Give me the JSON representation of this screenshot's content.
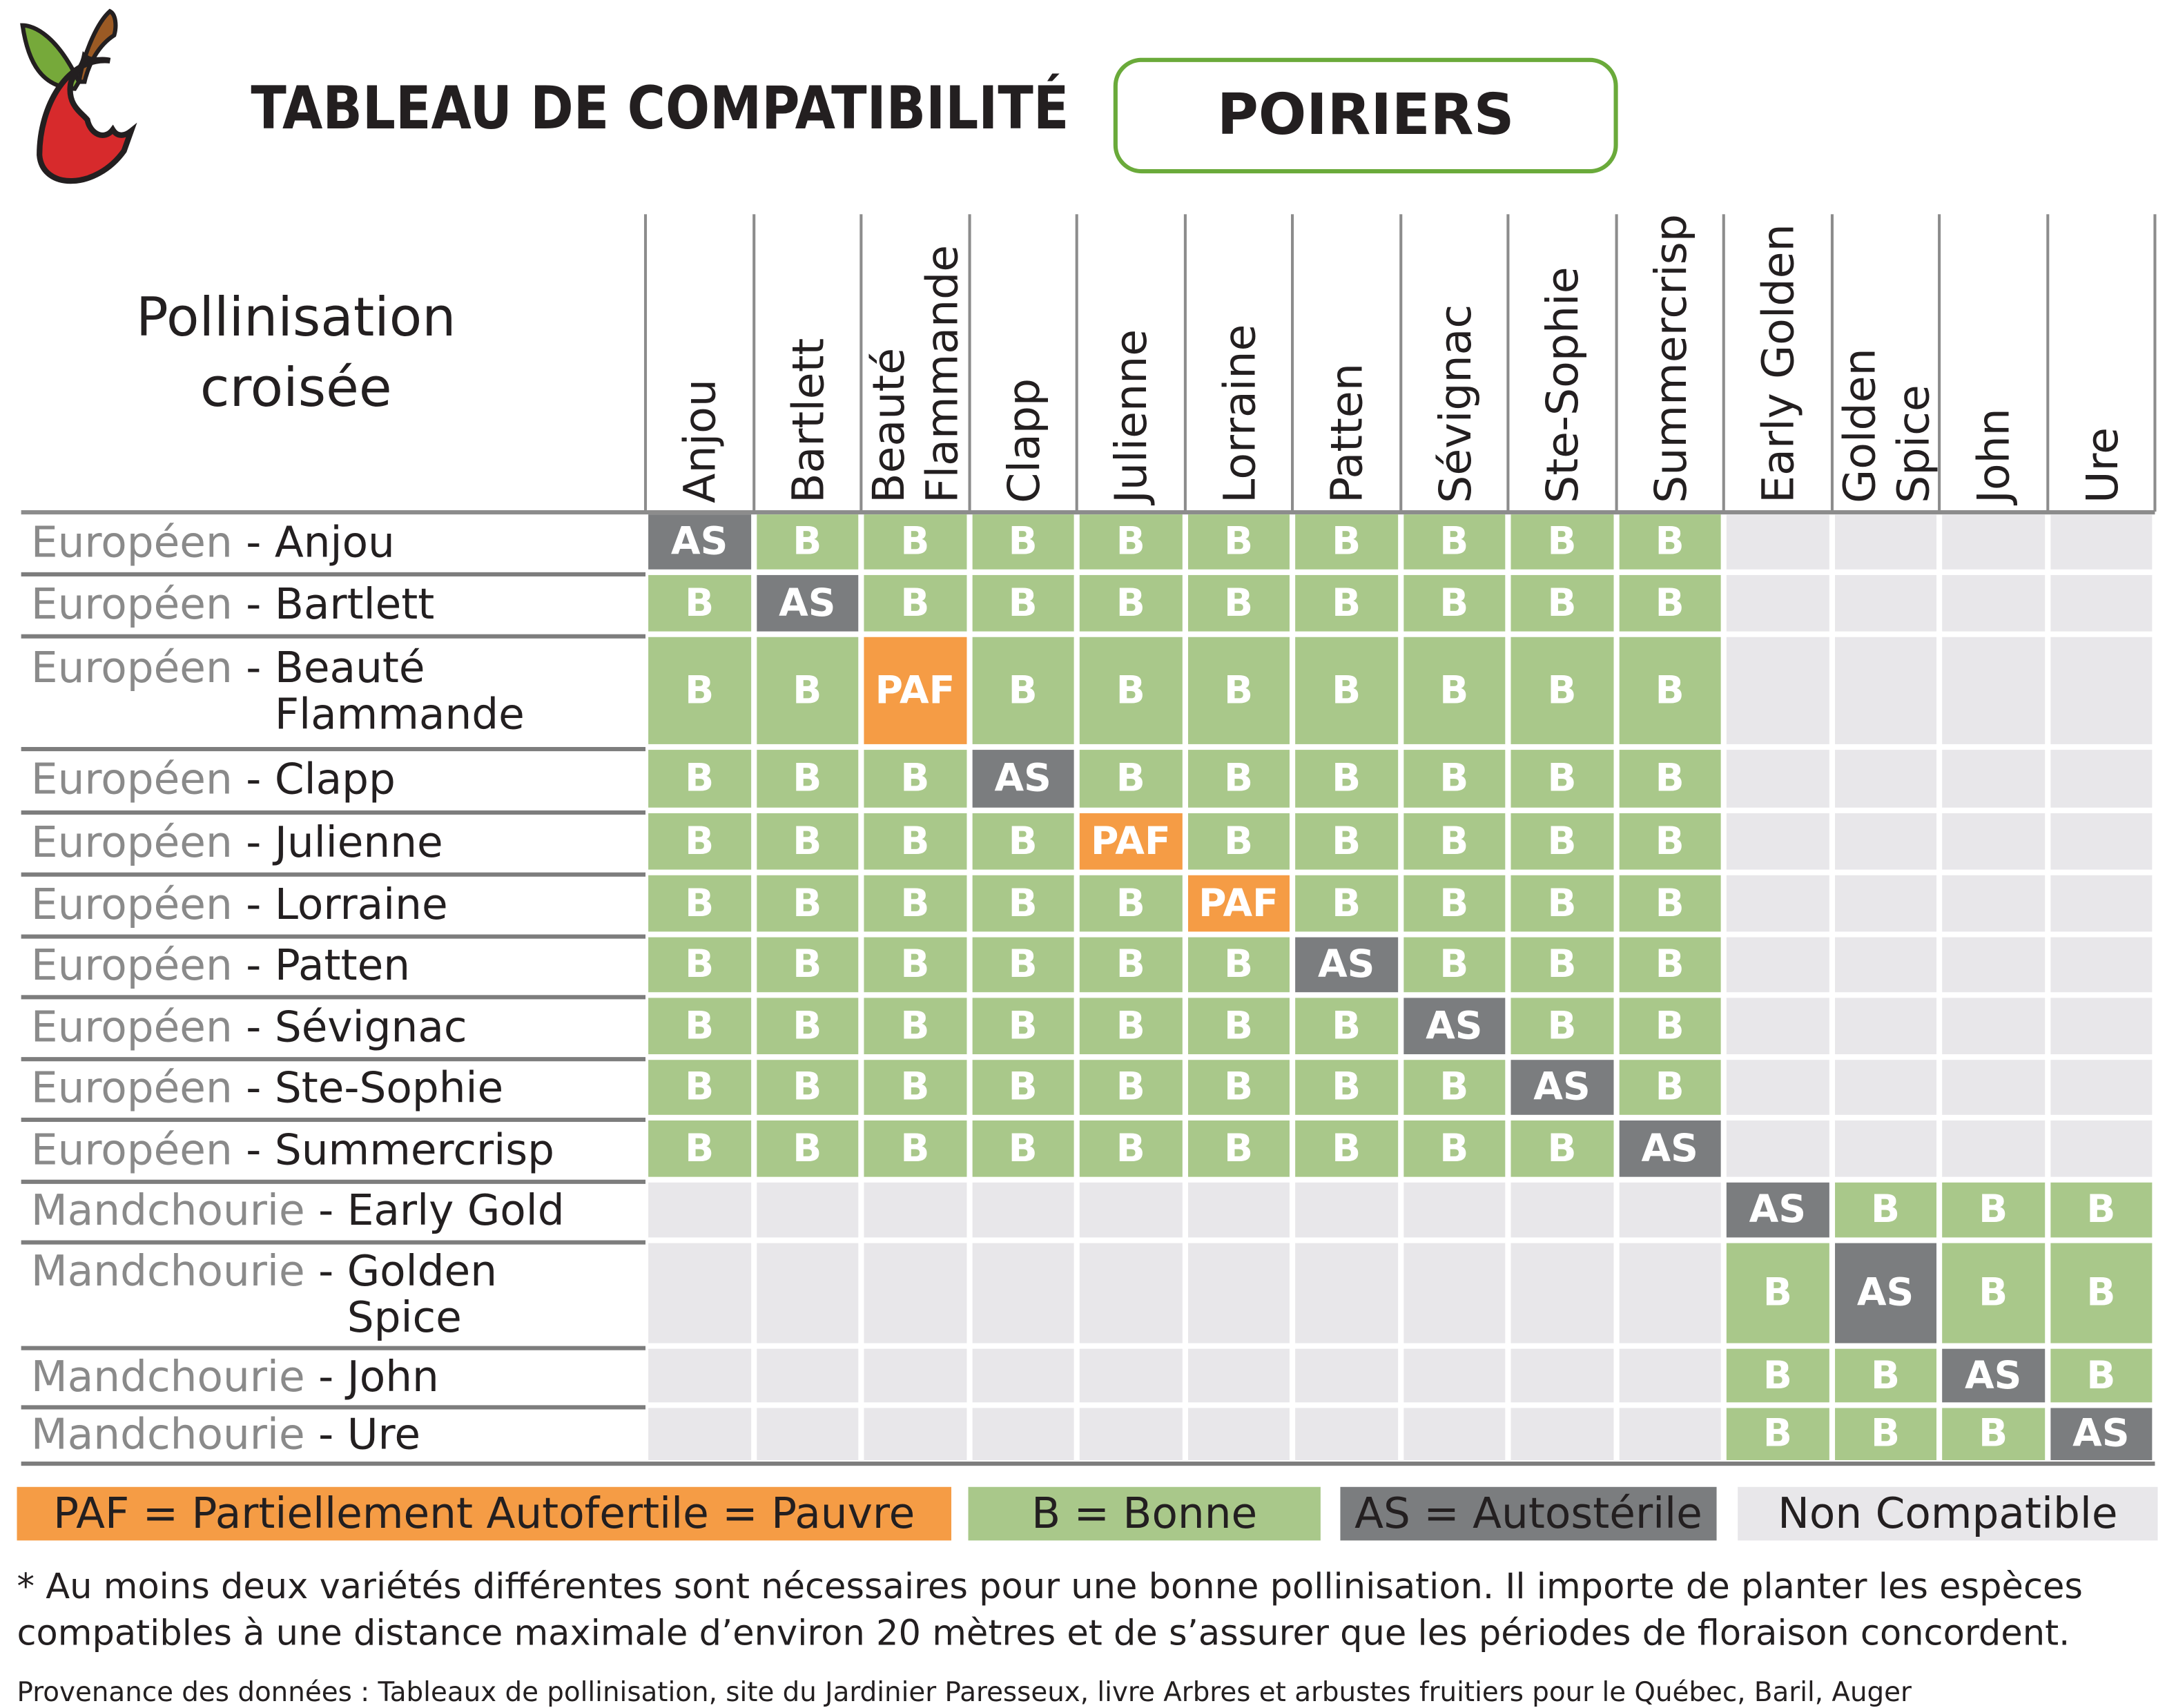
{
  "header": {
    "title": "TABLEAU DE COMPATIBILITÉ",
    "category": "POIRIERS",
    "corner_label": "Pollinisation\ncroisée"
  },
  "colors": {
    "PAF": "#f59c45",
    "B": "#a9c88a",
    "AS": "#7b7d7f",
    "NC": "#e8e7ea",
    "accent": "#6aaa3a"
  },
  "columns": [
    "Anjou",
    "Bartlett",
    "Beauté\nFlammande",
    "Clapp",
    "Julienne",
    "Lorraine",
    "Patten",
    "Sévignac",
    "Ste-Sophie",
    "Summercrisp",
    "Early Golden",
    "Golden\nSpice",
    "John",
    "Ure"
  ],
  "rows": [
    {
      "group": "Européen",
      "name": "Anjou",
      "cells": [
        "AS",
        "B",
        "B",
        "B",
        "B",
        "B",
        "B",
        "B",
        "B",
        "B",
        "",
        "",
        "",
        ""
      ]
    },
    {
      "group": "Européen",
      "name": "Bartlett",
      "cells": [
        "B",
        "AS",
        "B",
        "B",
        "B",
        "B",
        "B",
        "B",
        "B",
        "B",
        "",
        "",
        "",
        ""
      ]
    },
    {
      "group": "Européen",
      "name": "Beauté\nFlammande",
      "cells": [
        "B",
        "B",
        "PAF",
        "B",
        "B",
        "B",
        "B",
        "B",
        "B",
        "B",
        "",
        "",
        "",
        ""
      ]
    },
    {
      "group": "Européen",
      "name": "Clapp",
      "cells": [
        "B",
        "B",
        "B",
        "AS",
        "B",
        "B",
        "B",
        "B",
        "B",
        "B",
        "",
        "",
        "",
        ""
      ]
    },
    {
      "group": "Européen",
      "name": "Julienne",
      "cells": [
        "B",
        "B",
        "B",
        "B",
        "PAF",
        "B",
        "B",
        "B",
        "B",
        "B",
        "",
        "",
        "",
        ""
      ]
    },
    {
      "group": "Européen",
      "name": "Lorraine",
      "cells": [
        "B",
        "B",
        "B",
        "B",
        "B",
        "PAF",
        "B",
        "B",
        "B",
        "B",
        "",
        "",
        "",
        ""
      ]
    },
    {
      "group": "Européen",
      "name": "Patten",
      "cells": [
        "B",
        "B",
        "B",
        "B",
        "B",
        "B",
        "AS",
        "B",
        "B",
        "B",
        "",
        "",
        "",
        ""
      ]
    },
    {
      "group": "Européen",
      "name": "Sévignac",
      "cells": [
        "B",
        "B",
        "B",
        "B",
        "B",
        "B",
        "B",
        "AS",
        "B",
        "B",
        "",
        "",
        "",
        ""
      ]
    },
    {
      "group": "Européen",
      "name": "Ste-Sophie",
      "cells": [
        "B",
        "B",
        "B",
        "B",
        "B",
        "B",
        "B",
        "B",
        "AS",
        "B",
        "",
        "",
        "",
        ""
      ]
    },
    {
      "group": "Européen",
      "name": "Summercrisp",
      "cells": [
        "B",
        "B",
        "B",
        "B",
        "B",
        "B",
        "B",
        "B",
        "B",
        "AS",
        "",
        "",
        "",
        ""
      ]
    },
    {
      "group": "Mandchourie",
      "name": "Early Gold",
      "cells": [
        "",
        "",
        "",
        "",
        "",
        "",
        "",
        "",
        "",
        "",
        "AS",
        "B",
        "B",
        "B"
      ]
    },
    {
      "group": "Mandchourie",
      "name": "Golden\nSpice",
      "cells": [
        "",
        "",
        "",
        "",
        "",
        "",
        "",
        "",
        "",
        "",
        "B",
        "AS",
        "B",
        "B"
      ]
    },
    {
      "group": "Mandchourie",
      "name": "John",
      "cells": [
        "",
        "",
        "",
        "",
        "",
        "",
        "",
        "",
        "",
        "",
        "B",
        "B",
        "AS",
        "B"
      ]
    },
    {
      "group": "Mandchourie",
      "name": "Ure",
      "cells": [
        "",
        "",
        "",
        "",
        "",
        "",
        "",
        "",
        "",
        "",
        "B",
        "B",
        "B",
        "AS"
      ]
    }
  ],
  "legend": [
    {
      "key": "PAF",
      "label": "PAF = Partiellement Autofertile = Pauvre"
    },
    {
      "key": "B",
      "label": "B = Bonne"
    },
    {
      "key": "AS",
      "label": "AS = Autostérile"
    },
    {
      "key": "NC",
      "label": "Non Compatible"
    }
  ],
  "footnote": {
    "line1": "* Au moins deux variétés différentes sont nécessaires pour une bonne pollinisation. Il importe de planter les espèces",
    "line2": "compatibles à une distance maximale d’environ 20 mètres et de s’assurer que les périodes de floraison concordent.",
    "source": "Provenance des données : Tableaux de pollinisation, site du Jardinier Paresseux, livre Arbres et arbustes fruitiers pour le Québec, Baril, Auger"
  },
  "logo": {
    "icon": "bitten-apple-icon"
  }
}
